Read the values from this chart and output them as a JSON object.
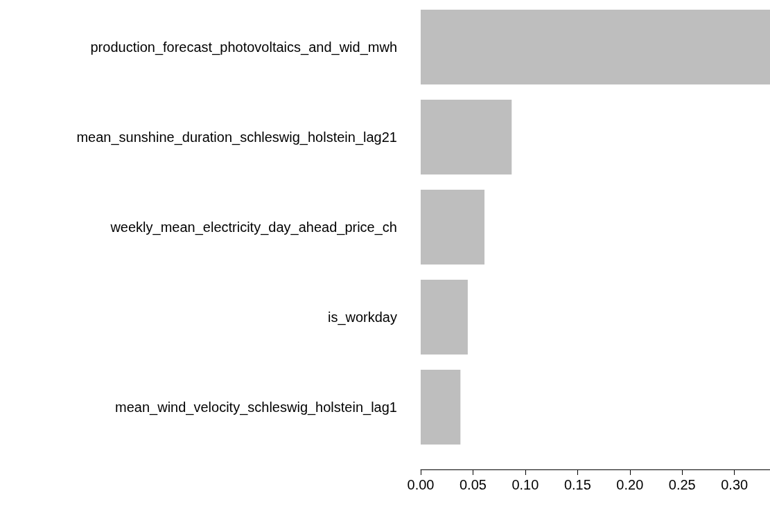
{
  "chart_data": {
    "type": "bar",
    "orientation": "horizontal",
    "categories": [
      "production_forecast_photovoltaics_and_wid_mwh",
      "mean_sunshine_duration_schleswig_holstein_lag21",
      "weekly_mean_electricity_day_ahead_price_ch",
      "is_workday",
      "mean_wind_velocity_schleswig_holstein_lag1"
    ],
    "values": [
      0.334,
      0.087,
      0.061,
      0.045,
      0.038
    ],
    "color": "#bebebe",
    "xlim": [
      0,
      0.334
    ],
    "xticks": [
      {
        "value": 0,
        "label": "0.00"
      },
      {
        "value": 0.05,
        "label": "0.05"
      },
      {
        "value": 0.1,
        "label": "0.10"
      },
      {
        "value": 0.15,
        "label": "0.15"
      },
      {
        "value": 0.2,
        "label": "0.20"
      },
      {
        "value": 0.25,
        "label": "0.25"
      },
      {
        "value": 0.3,
        "label": "0.30"
      }
    ],
    "grid": false
  }
}
